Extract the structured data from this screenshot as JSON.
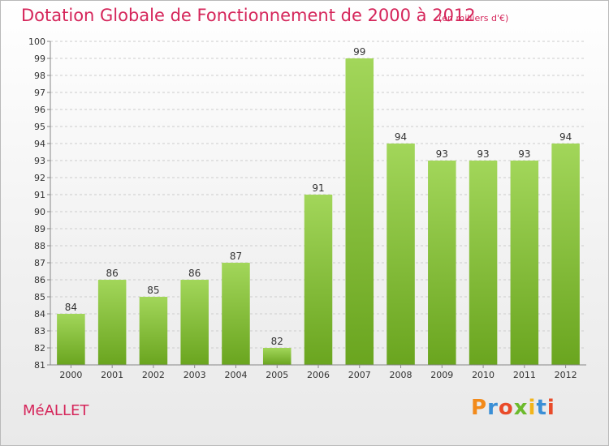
{
  "header": {
    "title": "Dotation Globale de Fonctionnement de 2000 à 2012",
    "unit": "(en milliers d'€)"
  },
  "footer": {
    "commune": "MéALLET",
    "brand_letters": [
      "P",
      "r",
      "o",
      "x",
      "i",
      "t",
      "i"
    ],
    "brand_colors": [
      "#f28a1a",
      "#3a8fd6",
      "#e94b2a",
      "#6cba2c",
      "#f2b51a",
      "#3a8fd6",
      "#e94b2a"
    ]
  },
  "colors": {
    "title": "#d5255a",
    "bar_top": "#a2d65a",
    "bar_bottom": "#6aa51f",
    "grid": "#cccccc"
  },
  "chart_data": {
    "type": "bar",
    "title": "Dotation Globale de Fonctionnement de 2000 à 2012",
    "subtitle": "(en milliers d'€)",
    "categories": [
      "2000",
      "2001",
      "2002",
      "2003",
      "2004",
      "2005",
      "2006",
      "2007",
      "2008",
      "2009",
      "2010",
      "2011",
      "2012"
    ],
    "values": [
      84,
      86,
      85,
      86,
      87,
      82,
      91,
      99,
      94,
      93,
      93,
      93,
      94
    ],
    "ylim": [
      81,
      100
    ],
    "yticks": [
      81,
      82,
      83,
      84,
      85,
      86,
      87,
      88,
      89,
      90,
      91,
      92,
      93,
      94,
      95,
      96,
      97,
      98,
      99,
      100
    ],
    "grid": true,
    "data_labels": true
  }
}
